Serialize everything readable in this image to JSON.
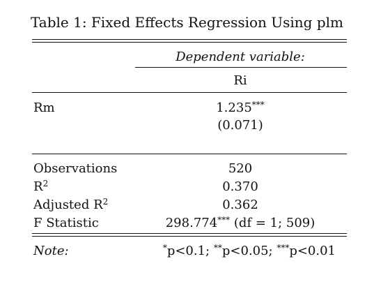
{
  "caption": "Table 1: Fixed Effects Regression Using plm",
  "header": {
    "dep_var_label": "Dependent variable:",
    "dep_var_name": "Ri"
  },
  "coefficients": [
    {
      "name": "Rm",
      "estimate": "1.235",
      "stars": "***",
      "se": "(0.071)"
    }
  ],
  "stats": {
    "observations_label": "Observations",
    "observations_value": "520",
    "r2_label_base": "R",
    "r2_label_sup": "2",
    "r2_value": "0.370",
    "adj_r2_label_base": "Adjusted R",
    "adj_r2_label_sup": "2",
    "adj_r2_value": "0.362",
    "fstat_label": "F Statistic",
    "fstat_value": "298.774",
    "fstat_stars": "***",
    "fstat_df": " (df = 1; 509)"
  },
  "note": {
    "label": "Note:",
    "p1_stars": "*",
    "p1_text": "p<0.1; ",
    "p2_stars": "**",
    "p2_text": "p<0.05; ",
    "p3_stars": "***",
    "p3_text": "p<0.01"
  }
}
